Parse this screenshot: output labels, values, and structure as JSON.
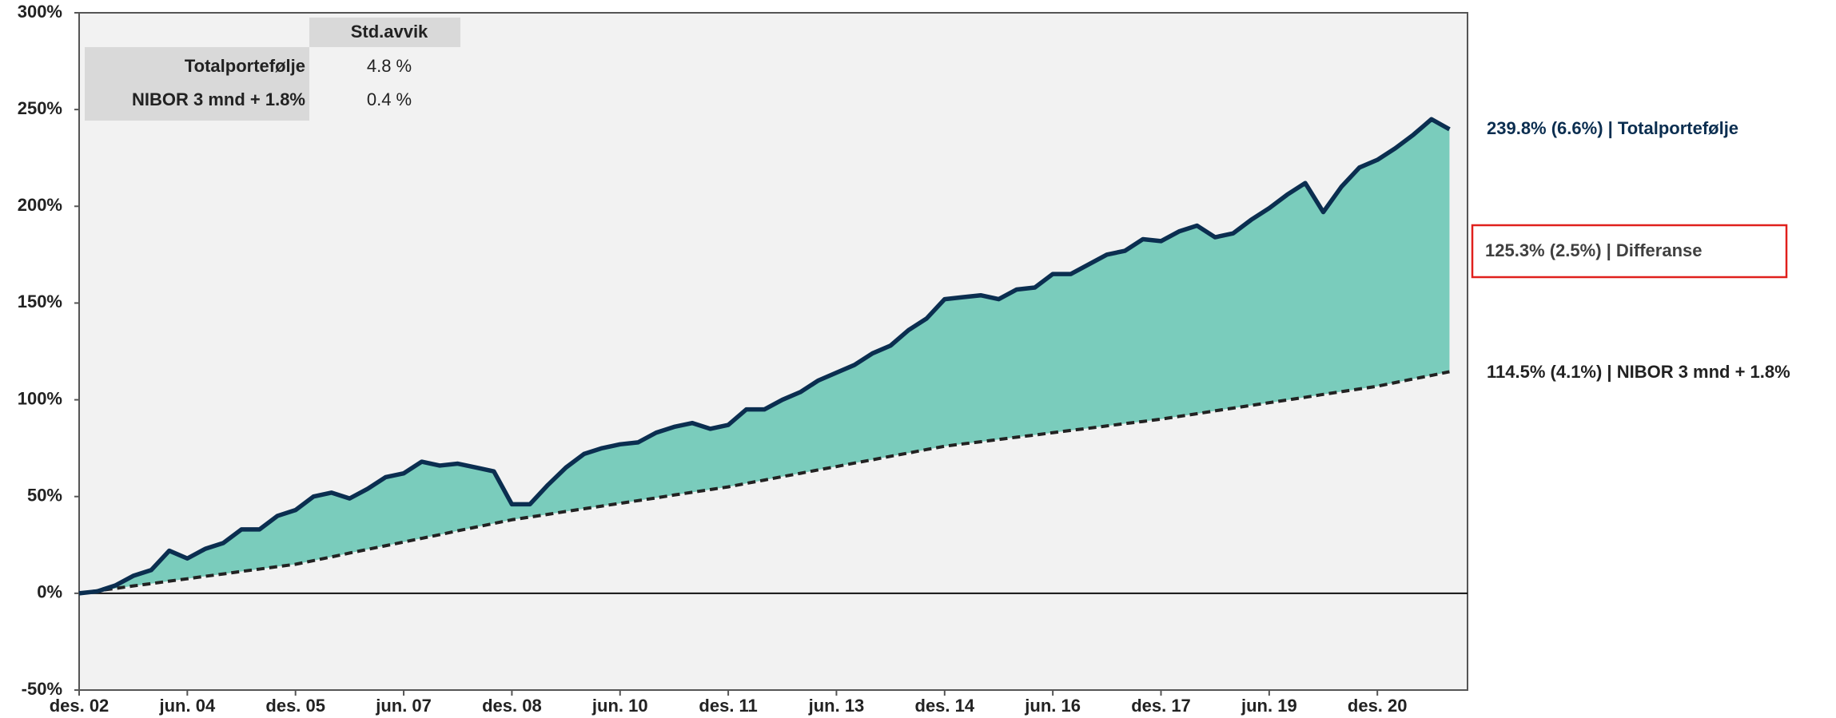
{
  "chart_data": {
    "type": "area-difference",
    "categories": [
      "des. 02",
      null,
      null,
      null,
      null,
      null,
      "jun. 04",
      null,
      null,
      null,
      null,
      null,
      "des. 05",
      null,
      null,
      null,
      null,
      null,
      "jun. 07",
      null,
      null,
      null,
      null,
      null,
      "des. 08",
      null,
      null,
      null,
      null,
      null,
      "jun. 10",
      null,
      null,
      null,
      null,
      null,
      "des. 11",
      null,
      null,
      null,
      null,
      null,
      "jun. 13",
      null,
      null,
      null,
      null,
      null,
      "des. 14",
      null,
      null,
      null,
      null,
      null,
      "jun. 16",
      null,
      null,
      null,
      null,
      null,
      "des. 17",
      null,
      null,
      null,
      null,
      null,
      "jun. 19",
      null,
      null,
      null,
      null,
      null,
      "des. 20",
      null,
      null,
      null,
      null
    ],
    "series": [
      {
        "name": "Totalportefølje",
        "color": "#0b2e50",
        "values": [
          0,
          1,
          4,
          9,
          12,
          22,
          18,
          23,
          26,
          33,
          33,
          40,
          43,
          50,
          52,
          49,
          54,
          60,
          62,
          68,
          66,
          67,
          65,
          63,
          46,
          46,
          56,
          65,
          72,
          75,
          77,
          78,
          83,
          86,
          88,
          85,
          87,
          95,
          95,
          100,
          104,
          110,
          114,
          118,
          124,
          128,
          136,
          142,
          152,
          153,
          154,
          152,
          157,
          158,
          165,
          165,
          170,
          175,
          177,
          183,
          182,
          187,
          190,
          184,
          186,
          193,
          199,
          206,
          212,
          197,
          210,
          220,
          224,
          230,
          237,
          245,
          239.8
        ]
      },
      {
        "name": "NIBOR 3 mnd + 1.8%",
        "color": "#222222",
        "dashed": true,
        "values": [
          0,
          1.3,
          2.5,
          3.8,
          5,
          6.3,
          7.5,
          8.8,
          10,
          11.3,
          12.5,
          13.8,
          15,
          16.9,
          18.8,
          20.8,
          22.7,
          24.6,
          26.5,
          28.4,
          30.3,
          32.3,
          34.2,
          36.1,
          38,
          39.4,
          40.8,
          42.3,
          43.7,
          45.1,
          46.5,
          47.9,
          49.3,
          50.8,
          52.2,
          53.6,
          55,
          56.8,
          58.5,
          60.3,
          62,
          63.8,
          65.5,
          67.3,
          69,
          70.8,
          72.5,
          74.3,
          76,
          77.2,
          78.3,
          79.5,
          80.7,
          81.8,
          83,
          84.2,
          85.3,
          86.5,
          87.7,
          88.8,
          90,
          91.4,
          92.8,
          94.3,
          95.7,
          97.1,
          98.5,
          99.9,
          101.3,
          102.8,
          104.2,
          105.6,
          107,
          108.9,
          110.8,
          112.6,
          114.5
        ]
      }
    ],
    "fill_color": "#7accbc",
    "ylim": [
      -50,
      300
    ],
    "yticks": [
      {
        "value": -50,
        "label": "-50%"
      },
      {
        "value": 0,
        "label": "0%"
      },
      {
        "value": 50,
        "label": "50%"
      },
      {
        "value": 100,
        "label": "100%"
      },
      {
        "value": 150,
        "label": "150%"
      },
      {
        "value": 200,
        "label": "200%"
      },
      {
        "value": 250,
        "label": "250%"
      },
      {
        "value": 300,
        "label": "300%"
      }
    ],
    "annotations": [
      "239.8% (6.6%) | Totalportefølje",
      "125.3% (2.5%) | Differanse",
      "114.5% (4.1%) | NIBOR 3 mnd + 1.8%"
    ],
    "table": {
      "header": "Std.avvik",
      "rows": [
        [
          "Totalportefølje",
          "4.8 %"
        ],
        [
          "NIBOR 3 mnd + 1.8%",
          "0.4 %"
        ]
      ]
    }
  }
}
